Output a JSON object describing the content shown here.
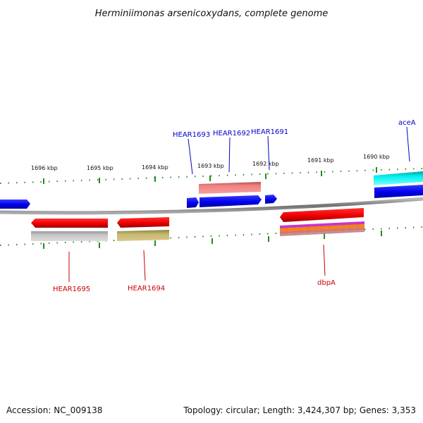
{
  "title": "Herminiimonas arsenicoxydans, complete genome",
  "ruler_labels": [
    "1696 kbp",
    "1695 kbp",
    "1694 kbp",
    "1693 kbp",
    "1692 kbp",
    "1691 kbp",
    "1690 kbp"
  ],
  "gene_labels": {
    "hear1693": "HEAR1693",
    "hear1692": "HEAR1692",
    "hear1691": "HEAR1691",
    "acea": "aceA",
    "hear1695": "HEAR1695",
    "hear1694": "HEAR1694",
    "dbpa": "dbpA"
  },
  "footer": {
    "accession": "Accession: NC_009138",
    "topology": "Topology: circular; Length: 3,424,307 bp; Genes: 3,353"
  },
  "colors": {
    "forward_gene": "#0000ee",
    "reverse_gene": "#ee0000",
    "tick": "#228b22",
    "backbone": "#808080",
    "label_forward": "#0000cc",
    "label_reverse": "#cc0000"
  }
}
